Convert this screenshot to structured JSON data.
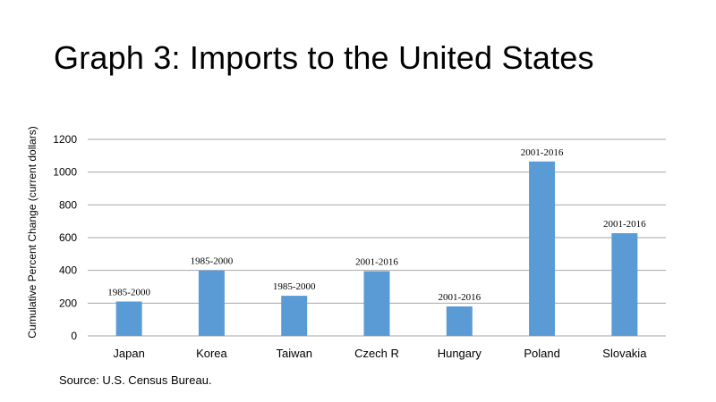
{
  "slide": {
    "title": "Graph 3: Imports to the United States",
    "source": "Source: U.S. Census Bureau."
  },
  "chart_data": {
    "type": "bar",
    "ylabel": "Cumulative Percent Change (current dollars)",
    "xlabel": "",
    "ylim": [
      0,
      1200
    ],
    "yticks": [
      0,
      200,
      400,
      600,
      800,
      1000,
      1200
    ],
    "grid": true,
    "categories": [
      "Japan",
      "Korea",
      "Taiwan",
      "Czech R",
      "Hungary",
      "Poland",
      "Slovakia"
    ],
    "values": [
      210,
      400,
      245,
      395,
      180,
      1065,
      627
    ],
    "data_labels": [
      "1985-2000",
      "1985-2000",
      "1985-2000",
      "2001-2016",
      "2001-2016",
      "2001-2016",
      "2001-2016"
    ],
    "bar_color": "#5b9bd5",
    "grid_color": "#a6a6a6"
  }
}
